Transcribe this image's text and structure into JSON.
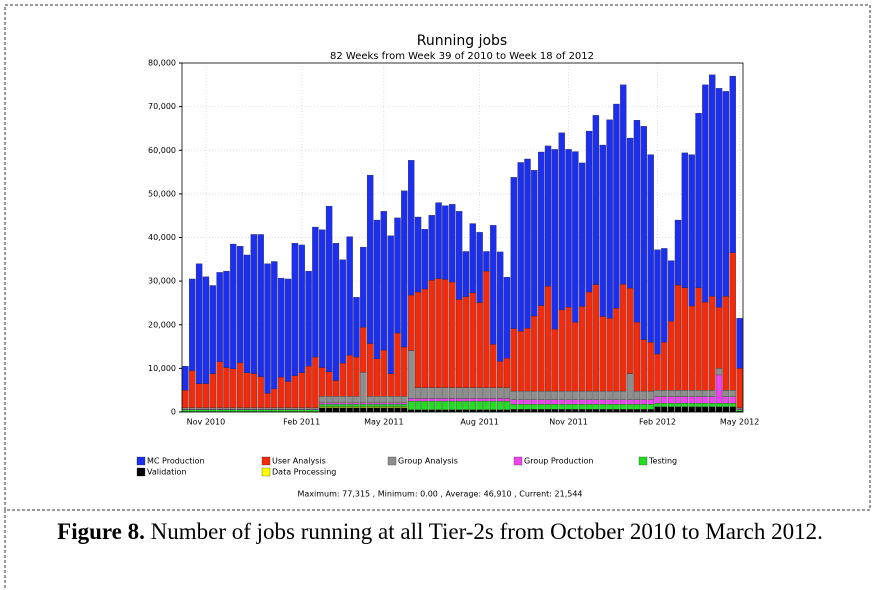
{
  "chart_data": {
    "type": "stacked-bar",
    "title": "Running jobs",
    "subtitle": "82 Weeks from Week 39 of 2010 to Week 18 of 2012",
    "footer": "Maximum: 77,315 , Minimum: 0.00 , Average: 46,910 , Current: 21,544",
    "categories": [
      null,
      null,
      null,
      "Nov 2010",
      null,
      null,
      null,
      null,
      null,
      null,
      null,
      null,
      null,
      null,
      null,
      null,
      null,
      "Feb 2011",
      null,
      null,
      null,
      null,
      null,
      null,
      null,
      null,
      null,
      null,
      null,
      "May 2011",
      null,
      null,
      null,
      null,
      null,
      null,
      null,
      null,
      null,
      null,
      null,
      null,
      null,
      "Aug 2011",
      null,
      null,
      null,
      null,
      null,
      null,
      null,
      null,
      null,
      null,
      null,
      null,
      "Nov 2011",
      null,
      null,
      null,
      null,
      null,
      null,
      null,
      null,
      null,
      null,
      null,
      null,
      "Feb 2012",
      null,
      null,
      null,
      null,
      null,
      null,
      null,
      null,
      null,
      null,
      null,
      "May 2012"
    ],
    "ylim": [
      0,
      80000
    ],
    "yticks": [
      0,
      {
        "value": 10000,
        "label": "10,000"
      },
      {
        "value": 20000,
        "label": "20,000"
      },
      {
        "value": 30000,
        "label": "30,000"
      },
      {
        "value": 40000,
        "label": "40,000"
      },
      {
        "value": 50000,
        "label": "50,000"
      },
      {
        "value": 60000,
        "label": "60,000"
      },
      {
        "value": 70000,
        "label": "70,000"
      },
      {
        "value": 80000,
        "label": "80,000"
      }
    ],
    "grid": true,
    "series": [
      {
        "name": "MC Production",
        "color": "#1c2ff0",
        "values": [
          5500,
          21000,
          27500,
          24500,
          20200,
          20500,
          22100,
          28600,
          26700,
          27000,
          31900,
          32600,
          29700,
          29200,
          22700,
          23500,
          30400,
          29300,
          21800,
          29800,
          31600,
          38000,
          31500,
          23700,
          27200,
          13700,
          18400,
          38600,
          31800,
          31800,
          31600,
          26400,
          35800,
          30900,
          17200,
          13700,
          14900,
          17400,
          16900,
          17800,
          20200,
          10400,
          15900,
          16100,
          4500,
          27300,
          25100,
          18600,
          34700,
          38700,
          38800,
          33400,
          35200,
          32200,
          41200,
          40600,
          36200,
          39100,
          32900,
          36900,
          38800,
          39300,
          45500,
          46800,
          45700,
          34400,
          46300,
          48900,
          43000,
          23900,
          21500,
          13900,
          14900,
          30900,
          34700,
          40000,
          49800,
          50800,
          50200,
          47000,
          40500,
          11500
        ]
      },
      {
        "name": "User Analysis",
        "color": "#f42a0c",
        "values": [
          4000,
          8500,
          5500,
          5500,
          7800,
          10500,
          9200,
          8900,
          10300,
          8000,
          7800,
          7100,
          3300,
          4300,
          7000,
          6000,
          7300,
          8000,
          9500,
          11600,
          6600,
          5600,
          3600,
          7600,
          9400,
          9000,
          10300,
          12100,
          8600,
          10600,
          5200,
          14500,
          11300,
          12700,
          21900,
          22600,
          24600,
          25000,
          24800,
          24200,
          20200,
          20800,
          21700,
          19500,
          26700,
          9900,
          6000,
          6700,
          14300,
          13700,
          14400,
          17200,
          19600,
          24000,
          14200,
          18600,
          19200,
          15800,
          19400,
          22700,
          24400,
          17100,
          16700,
          19000,
          24500,
          19600,
          15800,
          11800,
          11200,
          8300,
          11000,
          15800,
          24100,
          23500,
          19300,
          23500,
          20200,
          21500,
          14000,
          21500,
          31500,
          9000
        ]
      },
      {
        "name": "Group Analysis",
        "color": "#8e8e8e",
        "values": [
          400,
          400,
          400,
          400,
          400,
          400,
          400,
          400,
          400,
          400,
          400,
          400,
          400,
          400,
          400,
          400,
          400,
          400,
          400,
          400,
          1500,
          1500,
          1500,
          1500,
          1500,
          1500,
          7000,
          1500,
          1500,
          1500,
          1500,
          1500,
          1500,
          11000,
          2500,
          2500,
          2500,
          2500,
          2500,
          2500,
          2500,
          2500,
          2500,
          2500,
          2500,
          2500,
          2500,
          2500,
          2000,
          2000,
          2000,
          2000,
          2000,
          2000,
          2000,
          2000,
          2000,
          2000,
          2000,
          2000,
          2000,
          2000,
          2000,
          2000,
          2000,
          6000,
          2000,
          2000,
          2000,
          1500,
          1500,
          1500,
          1500,
          1500,
          1500,
          1500,
          1500,
          1500,
          1500,
          1500,
          1500,
          300
        ]
      },
      {
        "name": "Group Production",
        "color": "#ee44ee",
        "values": [
          100,
          100,
          100,
          100,
          100,
          100,
          100,
          100,
          100,
          100,
          100,
          100,
          100,
          100,
          100,
          100,
          100,
          100,
          100,
          100,
          300,
          300,
          300,
          300,
          300,
          300,
          300,
          300,
          300,
          300,
          300,
          300,
          300,
          600,
          600,
          600,
          600,
          600,
          600,
          600,
          600,
          600,
          600,
          600,
          600,
          600,
          600,
          600,
          1000,
          1000,
          1000,
          1000,
          1000,
          1000,
          1000,
          1000,
          1000,
          1000,
          1000,
          1000,
          1000,
          1000,
          1000,
          1000,
          1000,
          1000,
          1000,
          1000,
          1000,
          1500,
          1500,
          1500,
          1500,
          1500,
          1500,
          1500,
          1500,
          1500,
          6500,
          1500,
          1500,
          200
        ]
      },
      {
        "name": "Testing",
        "color": "#22dd22",
        "values": [
          400,
          400,
          400,
          400,
          400,
          400,
          400,
          400,
          400,
          400,
          400,
          400,
          400,
          400,
          400,
          400,
          400,
          400,
          400,
          400,
          600,
          600,
          600,
          600,
          600,
          600,
          600,
          600,
          600,
          600,
          600,
          600,
          600,
          2000,
          2000,
          2000,
          2000,
          2000,
          2000,
          2000,
          2000,
          2000,
          2000,
          2000,
          2000,
          2000,
          2000,
          2000,
          1200,
          1200,
          1200,
          1200,
          1200,
          1200,
          1200,
          1200,
          1200,
          1200,
          1200,
          1200,
          1200,
          1200,
          1200,
          1200,
          1200,
          1200,
          1200,
          1200,
          1200,
          800,
          800,
          800,
          800,
          800,
          800,
          800,
          800,
          800,
          800,
          800,
          800,
          300
        ]
      },
      {
        "name": "Validation",
        "color": "#000000",
        "values": [
          100,
          100,
          100,
          100,
          100,
          100,
          100,
          100,
          100,
          100,
          100,
          100,
          100,
          100,
          100,
          100,
          100,
          100,
          100,
          100,
          1000,
          1000,
          1000,
          1000,
          1000,
          1000,
          1000,
          1000,
          1000,
          1000,
          1000,
          1000,
          1000,
          500,
          500,
          500,
          500,
          500,
          500,
          500,
          500,
          500,
          500,
          500,
          500,
          500,
          500,
          500,
          600,
          600,
          600,
          600,
          600,
          600,
          600,
          600,
          600,
          600,
          600,
          600,
          600,
          600,
          600,
          600,
          600,
          600,
          600,
          600,
          600,
          1200,
          1200,
          1200,
          1200,
          1200,
          1200,
          1200,
          1200,
          1200,
          1200,
          1200,
          1200,
          200
        ]
      },
      {
        "name": "Data Processing",
        "color": "#ffff00",
        "values": [
          0,
          0,
          0,
          0,
          0,
          0,
          0,
          0,
          0,
          0,
          0,
          0,
          0,
          0,
          0,
          0,
          0,
          0,
          0,
          0,
          200,
          200,
          200,
          200,
          200,
          200,
          200,
          200,
          200,
          200,
          200,
          200,
          200,
          0,
          0,
          0,
          0,
          0,
          0,
          0,
          0,
          0,
          0,
          0,
          0,
          0,
          0,
          0,
          0,
          0,
          0,
          0,
          0,
          0,
          0,
          0,
          0,
          0,
          0,
          0,
          0,
          0,
          0,
          0,
          0,
          0,
          0,
          0,
          0,
          0,
          0,
          0,
          0,
          0,
          0,
          0,
          0,
          0,
          0,
          0,
          0,
          0
        ]
      }
    ]
  },
  "caption": {
    "label": "Figure 8.",
    "text": "Number of jobs running at all Tier-2s from October 2010 to March 2012."
  }
}
